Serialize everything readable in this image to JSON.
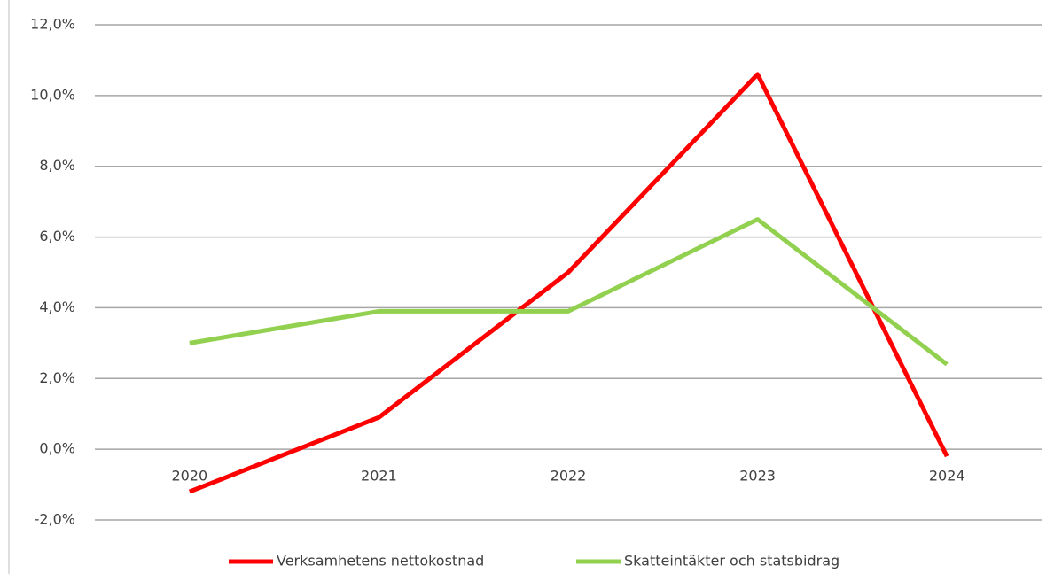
{
  "chart_data": {
    "type": "line",
    "categories": [
      "2020",
      "2021",
      "2022",
      "2023",
      "2024"
    ],
    "series": [
      {
        "name": "Verksamhetens nettokostnad",
        "color": "#ff0000",
        "values": [
          -1.2,
          0.9,
          5.0,
          10.6,
          -0.2
        ]
      },
      {
        "name": "Skatteintäkter och statsbidrag",
        "color": "#92d050",
        "values": [
          3.0,
          3.9,
          3.9,
          6.5,
          2.4
        ]
      }
    ],
    "ylim": [
      -2,
      12
    ],
    "yticks": [
      {
        "value": -2,
        "label": "-2,0%"
      },
      {
        "value": 0,
        "label": "0,0%"
      },
      {
        "value": 2,
        "label": "2,0%"
      },
      {
        "value": 4,
        "label": "4,0%"
      },
      {
        "value": 6,
        "label": "6,0%"
      },
      {
        "value": 8,
        "label": "8,0%"
      },
      {
        "value": 10,
        "label": "10,0%"
      },
      {
        "value": 12,
        "label": "12,0%"
      }
    ],
    "grid": true,
    "legend": "bottom"
  }
}
